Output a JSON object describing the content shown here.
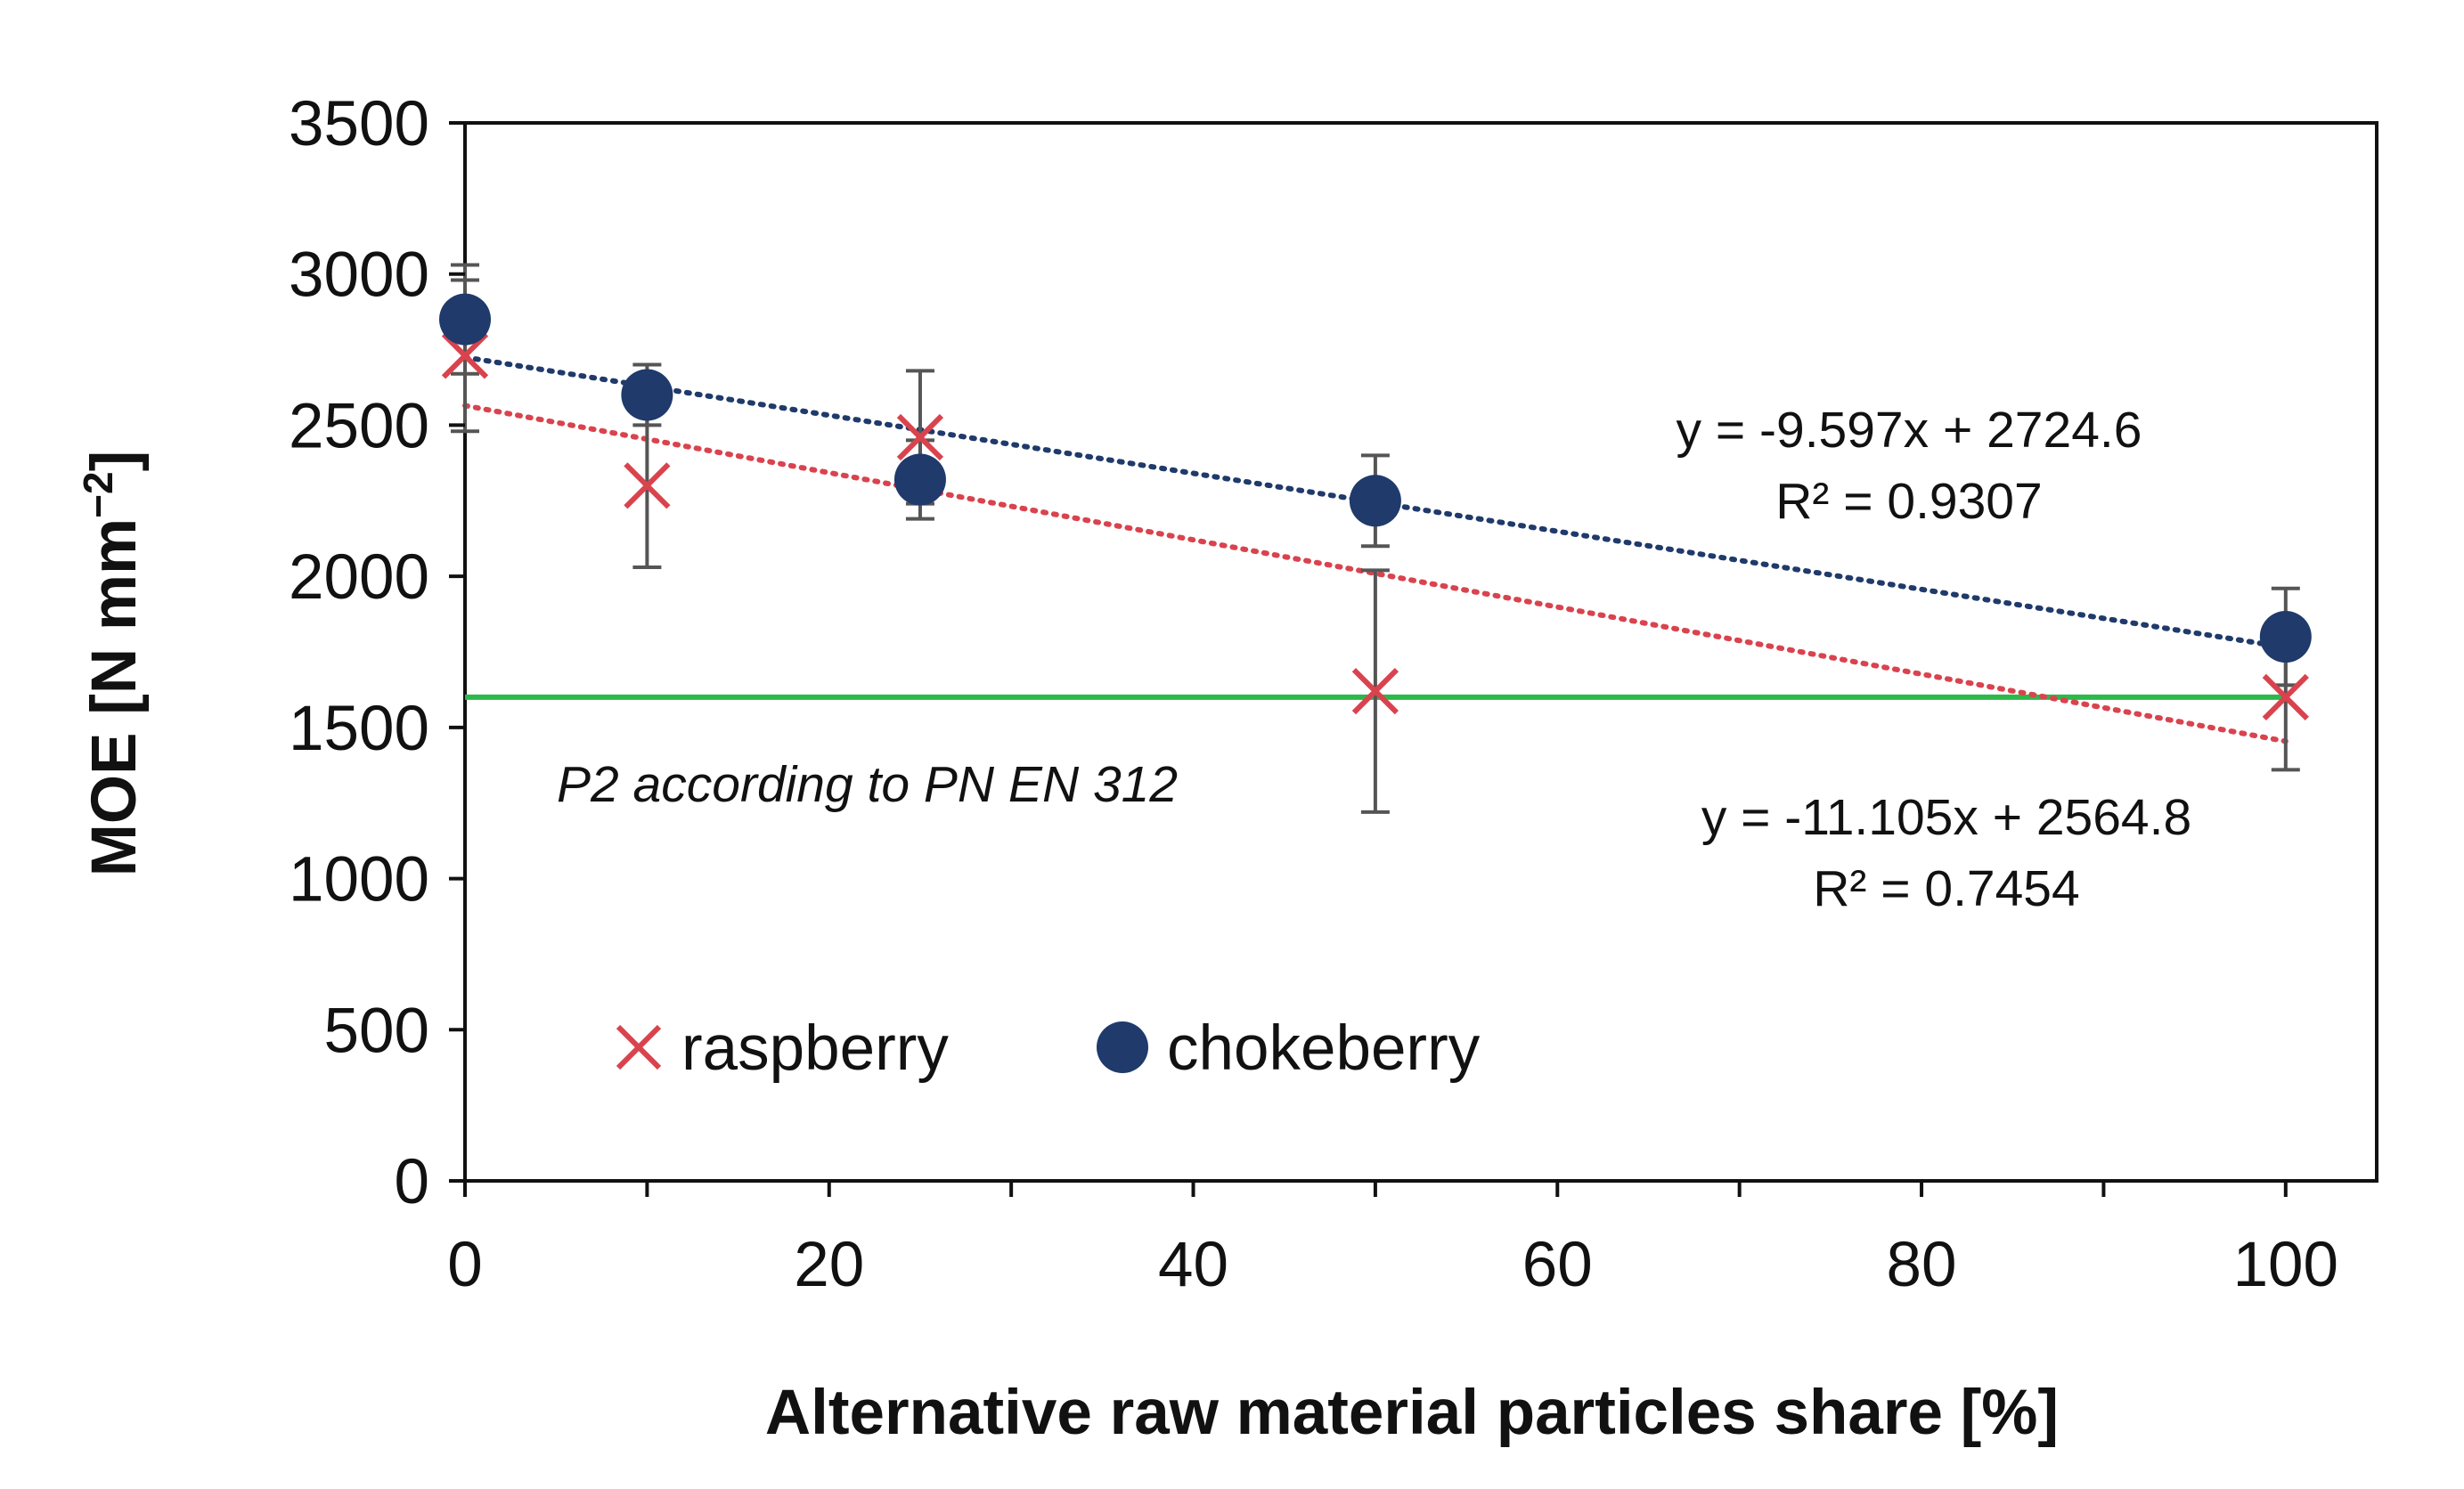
{
  "chart_data": {
    "type": "scatter",
    "title": "",
    "xlabel": "Alternative raw material particles share [%]",
    "ylabel": "MOE [N mm",
    "ylabel_sup": "−2",
    "ylabel_end": "]",
    "xlim": [
      0,
      105
    ],
    "ylim": [
      0,
      3500
    ],
    "x_ticks": [
      "0",
      "20",
      "40",
      "60",
      "80",
      "100"
    ],
    "y_ticks": [
      "0",
      "500",
      "1000",
      "1500",
      "2000",
      "2500",
      "3000",
      "3500"
    ],
    "grid": false,
    "legend_position": "lower-left",
    "series": [
      {
        "name": "raspberry",
        "marker": "x",
        "color": "#d9434e",
        "x": [
          0,
          10,
          25,
          50,
          100
        ],
        "y": [
          2730,
          2300,
          2460,
          1620,
          1600
        ],
        "err": [
          250,
          270,
          220,
          400,
          240
        ],
        "trendline": {
          "slope": -11.105,
          "intercept": 2564.8,
          "style": "dotted"
        },
        "equation": "y = -11.105x + 2564.8",
        "r2": "R² = 0.7454"
      },
      {
        "name": "chokeberry",
        "marker": "circle",
        "color": "#1f3a6b",
        "x": [
          0,
          10,
          25,
          50,
          100
        ],
        "y": [
          2850,
          2600,
          2320,
          2250,
          1800
        ],
        "err": [
          180,
          100,
          130,
          150,
          160
        ],
        "trendline": {
          "slope": -9.597,
          "intercept": 2724.6,
          "style": "dotted"
        },
        "equation": "y = -9.597x + 2724.6",
        "r2": "R² = 0.9307"
      }
    ],
    "reference_line": {
      "y": 1600,
      "color": "#2db84a",
      "label": "P2 according to PN EN 312"
    },
    "errorbar_color": "#555555"
  }
}
